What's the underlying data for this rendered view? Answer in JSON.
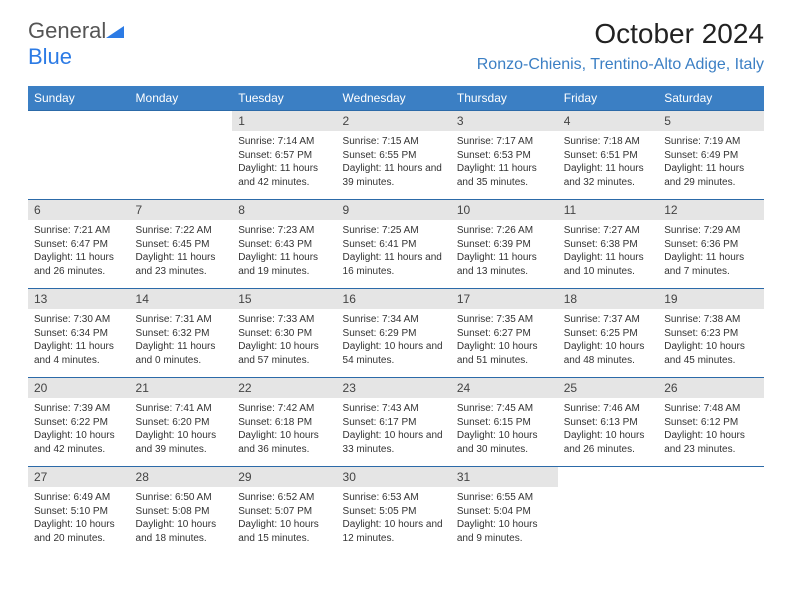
{
  "logo": {
    "text1": "General",
    "text2": "Blue"
  },
  "title": "October 2024",
  "location": "Ronzo-Chienis, Trentino-Alto Adige, Italy",
  "dow": [
    "Sunday",
    "Monday",
    "Tuesday",
    "Wednesday",
    "Thursday",
    "Friday",
    "Saturday"
  ],
  "colors": {
    "header_bg": "#3b7fc4",
    "header_text": "#ffffff",
    "daynum_bg": "#e5e5e5",
    "border": "#2c6aa8",
    "location": "#3b7fc4",
    "logo_blue": "#2c7be5"
  },
  "weeks": [
    [
      null,
      null,
      {
        "n": "1",
        "sr": "7:14 AM",
        "ss": "6:57 PM",
        "dl": "11 hours and 42 minutes."
      },
      {
        "n": "2",
        "sr": "7:15 AM",
        "ss": "6:55 PM",
        "dl": "11 hours and 39 minutes."
      },
      {
        "n": "3",
        "sr": "7:17 AM",
        "ss": "6:53 PM",
        "dl": "11 hours and 35 minutes."
      },
      {
        "n": "4",
        "sr": "7:18 AM",
        "ss": "6:51 PM",
        "dl": "11 hours and 32 minutes."
      },
      {
        "n": "5",
        "sr": "7:19 AM",
        "ss": "6:49 PM",
        "dl": "11 hours and 29 minutes."
      }
    ],
    [
      {
        "n": "6",
        "sr": "7:21 AM",
        "ss": "6:47 PM",
        "dl": "11 hours and 26 minutes."
      },
      {
        "n": "7",
        "sr": "7:22 AM",
        "ss": "6:45 PM",
        "dl": "11 hours and 23 minutes."
      },
      {
        "n": "8",
        "sr": "7:23 AM",
        "ss": "6:43 PM",
        "dl": "11 hours and 19 minutes."
      },
      {
        "n": "9",
        "sr": "7:25 AM",
        "ss": "6:41 PM",
        "dl": "11 hours and 16 minutes."
      },
      {
        "n": "10",
        "sr": "7:26 AM",
        "ss": "6:39 PM",
        "dl": "11 hours and 13 minutes."
      },
      {
        "n": "11",
        "sr": "7:27 AM",
        "ss": "6:38 PM",
        "dl": "11 hours and 10 minutes."
      },
      {
        "n": "12",
        "sr": "7:29 AM",
        "ss": "6:36 PM",
        "dl": "11 hours and 7 minutes."
      }
    ],
    [
      {
        "n": "13",
        "sr": "7:30 AM",
        "ss": "6:34 PM",
        "dl": "11 hours and 4 minutes."
      },
      {
        "n": "14",
        "sr": "7:31 AM",
        "ss": "6:32 PM",
        "dl": "11 hours and 0 minutes."
      },
      {
        "n": "15",
        "sr": "7:33 AM",
        "ss": "6:30 PM",
        "dl": "10 hours and 57 minutes."
      },
      {
        "n": "16",
        "sr": "7:34 AM",
        "ss": "6:29 PM",
        "dl": "10 hours and 54 minutes."
      },
      {
        "n": "17",
        "sr": "7:35 AM",
        "ss": "6:27 PM",
        "dl": "10 hours and 51 minutes."
      },
      {
        "n": "18",
        "sr": "7:37 AM",
        "ss": "6:25 PM",
        "dl": "10 hours and 48 minutes."
      },
      {
        "n": "19",
        "sr": "7:38 AM",
        "ss": "6:23 PM",
        "dl": "10 hours and 45 minutes."
      }
    ],
    [
      {
        "n": "20",
        "sr": "7:39 AM",
        "ss": "6:22 PM",
        "dl": "10 hours and 42 minutes."
      },
      {
        "n": "21",
        "sr": "7:41 AM",
        "ss": "6:20 PM",
        "dl": "10 hours and 39 minutes."
      },
      {
        "n": "22",
        "sr": "7:42 AM",
        "ss": "6:18 PM",
        "dl": "10 hours and 36 minutes."
      },
      {
        "n": "23",
        "sr": "7:43 AM",
        "ss": "6:17 PM",
        "dl": "10 hours and 33 minutes."
      },
      {
        "n": "24",
        "sr": "7:45 AM",
        "ss": "6:15 PM",
        "dl": "10 hours and 30 minutes."
      },
      {
        "n": "25",
        "sr": "7:46 AM",
        "ss": "6:13 PM",
        "dl": "10 hours and 26 minutes."
      },
      {
        "n": "26",
        "sr": "7:48 AM",
        "ss": "6:12 PM",
        "dl": "10 hours and 23 minutes."
      }
    ],
    [
      {
        "n": "27",
        "sr": "6:49 AM",
        "ss": "5:10 PM",
        "dl": "10 hours and 20 minutes."
      },
      {
        "n": "28",
        "sr": "6:50 AM",
        "ss": "5:08 PM",
        "dl": "10 hours and 18 minutes."
      },
      {
        "n": "29",
        "sr": "6:52 AM",
        "ss": "5:07 PM",
        "dl": "10 hours and 15 minutes."
      },
      {
        "n": "30",
        "sr": "6:53 AM",
        "ss": "5:05 PM",
        "dl": "10 hours and 12 minutes."
      },
      {
        "n": "31",
        "sr": "6:55 AM",
        "ss": "5:04 PM",
        "dl": "10 hours and 9 minutes."
      },
      null,
      null
    ]
  ],
  "labels": {
    "sunrise": "Sunrise:",
    "sunset": "Sunset:",
    "daylight": "Daylight:"
  }
}
